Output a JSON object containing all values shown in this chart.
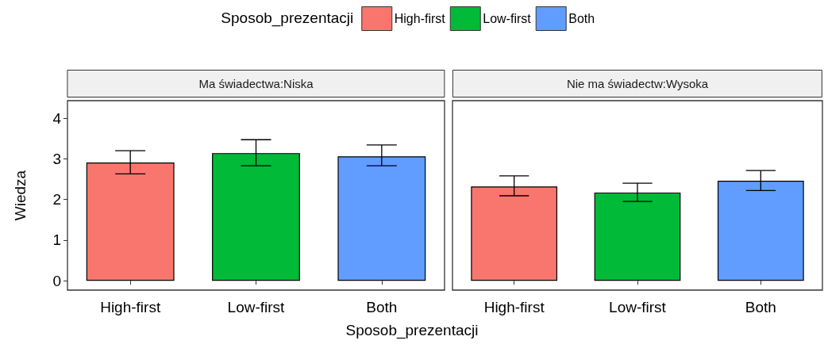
{
  "chart_data": [
    {
      "type": "bar",
      "title": "Ma świadectwa:Niska",
      "ylabel": "Wiedza",
      "xlabel": "Sposob_prezentacji",
      "legend_title": "Sposob_prezentacji",
      "legend": "top",
      "categories": [
        "High-first",
        "Low-first",
        "Both"
      ],
      "series": [
        {
          "name": "High-first",
          "color": "#f8766d",
          "values": [
            2.91,
            null,
            null
          ],
          "errors": [
            [
              2.63,
              3.2
            ],
            null,
            null
          ]
        },
        {
          "name": "Low-first",
          "color": "#00ba38",
          "values": [
            null,
            3.14,
            null
          ],
          "errors": [
            null,
            [
              2.83,
              3.47
            ],
            null
          ]
        },
        {
          "name": "Both",
          "color": "#619cff",
          "values": [
            null,
            null,
            3.06
          ],
          "errors": [
            null,
            null,
            [
              2.83,
              3.34
            ]
          ]
        }
      ],
      "ylim": [
        -0.23,
        4.43
      ],
      "yticks": [
        0,
        1,
        2,
        3,
        4
      ],
      "grid": false
    },
    {
      "type": "bar",
      "title": "Nie ma świadectw:Wysoka",
      "tick_labels": "x",
      "categories": [
        "High-first",
        "Low-first",
        "Both"
      ],
      "series": [
        {
          "color": "#f8766d",
          "values": [
            2.32,
            null,
            null
          ],
          "errors": [
            [
              2.09,
              2.58
            ],
            null,
            null
          ]
        },
        {
          "color": "#00ba38",
          "values": [
            null,
            2.17,
            null
          ],
          "errors": [
            null,
            [
              1.95,
              2.4
            ],
            null
          ]
        },
        {
          "color": "#619cff",
          "values": [
            null,
            null,
            2.46
          ],
          "errors": [
            null,
            null,
            [
              2.22,
              2.71
            ]
          ]
        }
      ],
      "ylim": [
        -0.23,
        4.43
      ],
      "yticks": [
        0,
        1,
        2,
        3,
        4
      ],
      "grid": false
    }
  ]
}
